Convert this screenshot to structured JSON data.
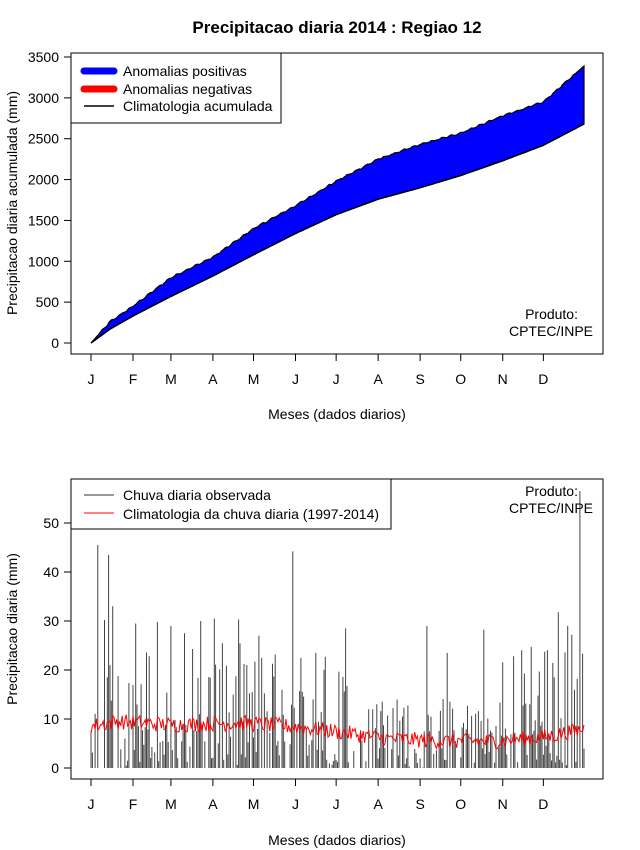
{
  "chart_data": [
    {
      "type": "area",
      "title": "Precipitacao diaria 2014 : Regiao 12",
      "xlabel": "Meses (dados diarios)",
      "ylabel": "Precipitacao diaria acumulada (mm)",
      "ylim": [
        0,
        3500
      ],
      "yticks": [
        0,
        500,
        1000,
        1500,
        2000,
        2500,
        3000,
        3500
      ],
      "month_labels": [
        "J",
        "F",
        "M",
        "A",
        "M",
        "J",
        "J",
        "A",
        "S",
        "O",
        "N",
        "D"
      ],
      "legend": [
        "Anomalias positivas",
        "Anomalias negativas",
        "Climatologia acumulada"
      ],
      "legend_position": "top-left",
      "colors": {
        "positive": "#0000ff",
        "negative": "#ff0000",
        "climatology": "#000000"
      },
      "credit": [
        "Produto:",
        "CPTEC/INPE"
      ],
      "day_anchors": [
        1,
        15,
        32,
        60,
        91,
        121,
        152,
        182,
        213,
        244,
        274,
        305,
        335,
        365
      ],
      "observed_cumulative": [
        0,
        260,
        450,
        800,
        1050,
        1400,
        1680,
        1980,
        2250,
        2430,
        2570,
        2780,
        2950,
        3390
      ],
      "climatology_cumulative": [
        0,
        170,
        330,
        570,
        820,
        1080,
        1340,
        1570,
        1760,
        1900,
        2050,
        2230,
        2420,
        2680
      ]
    },
    {
      "type": "line",
      "xlabel": "Meses (dados diarios)",
      "ylabel": "Precipitacao diaria (mm)",
      "ylim": [
        0,
        57
      ],
      "yticks": [
        0,
        10,
        20,
        30,
        40,
        50
      ],
      "month_labels": [
        "J",
        "F",
        "M",
        "A",
        "M",
        "J",
        "J",
        "A",
        "S",
        "O",
        "N",
        "D"
      ],
      "legend": [
        "Chuva diaria observada",
        "Climatologia da chuva diaria (1997-2014)"
      ],
      "legend_position": "top-left",
      "colors": {
        "observed": "#333333",
        "climatology": "#ff0000"
      },
      "credit": [
        "Produto:",
        "CPTEC/INPE"
      ],
      "series": [
        {
          "name": "Chuva diaria observada",
          "highlights": [
            {
              "day": 6,
              "value": 45.5
            },
            {
              "day": 11,
              "value": 30.2
            },
            {
              "day": 14,
              "value": 43.5
            },
            {
              "day": 17,
              "value": 33.0
            },
            {
              "day": 34,
              "value": 29.5
            },
            {
              "day": 50,
              "value": 29.8
            },
            {
              "day": 60,
              "value": 29.0
            },
            {
              "day": 70,
              "value": 27.5
            },
            {
              "day": 82,
              "value": 30.0
            },
            {
              "day": 92,
              "value": 30.5
            },
            {
              "day": 110,
              "value": 30.3
            },
            {
              "day": 125,
              "value": 27.0
            },
            {
              "day": 150,
              "value": 44.2
            },
            {
              "day": 167,
              "value": 23.5
            },
            {
              "day": 189,
              "value": 28.5
            },
            {
              "day": 249,
              "value": 29.0
            },
            {
              "day": 264,
              "value": 23.5
            },
            {
              "day": 291,
              "value": 28.2
            },
            {
              "day": 313,
              "value": 22.8
            },
            {
              "day": 346,
              "value": 31.8
            },
            {
              "day": 353,
              "value": 29.0
            },
            {
              "day": 356,
              "value": 27.2
            },
            {
              "day": 362,
              "value": 56.5
            }
          ]
        },
        {
          "name": "Climatologia da chuva diaria (1997-2014)",
          "day_anchors": [
            1,
            20,
            60,
            110,
            150,
            180,
            220,
            260,
            300,
            340,
            365
          ],
          "values": [
            8.5,
            9.5,
            8.8,
            9.2,
            8.5,
            7.5,
            6.0,
            5.5,
            5.5,
            6.5,
            8.0
          ]
        }
      ]
    }
  ]
}
